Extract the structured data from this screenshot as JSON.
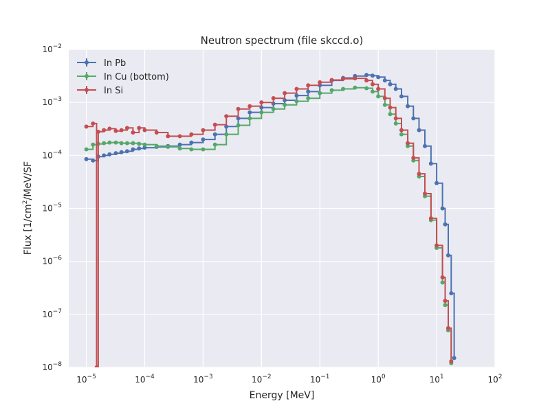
{
  "chart_data": {
    "type": "line",
    "title": "Neutron spectrum (file skccd.o)",
    "xlabel": "Energy [MeV]",
    "ylabel_prefix": "Flux [1/cm",
    "ylabel_sup": "2",
    "ylabel_suffix": "/MeV/SF",
    "x_scale": "log",
    "y_scale": "log",
    "xlim": [
      5e-06,
      100
    ],
    "ylim": [
      1e-08,
      0.01
    ],
    "grid": true,
    "legend_position": "top-left",
    "x_ticks": [
      {
        "base": "10",
        "exp": "−5"
      },
      {
        "base": "10",
        "exp": "−4"
      },
      {
        "base": "10",
        "exp": "−3"
      },
      {
        "base": "10",
        "exp": "−2"
      },
      {
        "base": "10",
        "exp": "−1"
      },
      {
        "base": "10",
        "exp": "0"
      },
      {
        "base": "10",
        "exp": "1"
      },
      {
        "base": "10",
        "exp": "2"
      }
    ],
    "y_ticks": [
      {
        "base": "10",
        "exp": "−8"
      },
      {
        "base": "10",
        "exp": "−7"
      },
      {
        "base": "10",
        "exp": "−6"
      },
      {
        "base": "10",
        "exp": "−5"
      },
      {
        "base": "10",
        "exp": "−4"
      },
      {
        "base": "10",
        "exp": "−3"
      },
      {
        "base": "10",
        "exp": "−2"
      }
    ],
    "series": [
      {
        "name": "In Pb",
        "color": "#4C72B0",
        "points": [
          [
            1e-05,
            8.5e-05
          ],
          [
            1.3e-05,
            8e-05
          ],
          [
            1.6e-05,
            9.5e-05
          ],
          [
            2e-05,
            0.0001
          ],
          [
            2.5e-05,
            0.000105
          ],
          [
            3.2e-05,
            0.00011
          ],
          [
            4e-05,
            0.000115
          ],
          [
            5e-05,
            0.00012
          ],
          [
            6.3e-05,
            0.00013
          ],
          [
            8e-05,
            0.000135
          ],
          [
            0.0001,
            0.00014
          ],
          [
            0.00016,
            0.000145
          ],
          [
            0.00025,
            0.00015
          ],
          [
            0.0004,
            0.00016
          ],
          [
            0.00063,
            0.000175
          ],
          [
            0.001,
            0.0002
          ],
          [
            0.0016,
            0.00025
          ],
          [
            0.0025,
            0.00035
          ],
          [
            0.004,
            0.0005
          ],
          [
            0.0063,
            0.00065
          ],
          [
            0.01,
            0.0008
          ],
          [
            0.016,
            0.00095
          ],
          [
            0.025,
            0.0011
          ],
          [
            0.04,
            0.00135
          ],
          [
            0.063,
            0.0016
          ],
          [
            0.1,
            0.0021
          ],
          [
            0.16,
            0.0026
          ],
          [
            0.25,
            0.0029
          ],
          [
            0.4,
            0.00315
          ],
          [
            0.63,
            0.0033
          ],
          [
            0.8,
            0.0032
          ],
          [
            1.0,
            0.003
          ],
          [
            1.3,
            0.0026
          ],
          [
            1.6,
            0.0022
          ],
          [
            2.0,
            0.0018
          ],
          [
            2.5,
            0.0013
          ],
          [
            3.2,
            0.00085
          ],
          [
            4.0,
            0.0005
          ],
          [
            5.0,
            0.0003
          ],
          [
            6.3,
            0.00015
          ],
          [
            8.0,
            7e-05
          ],
          [
            10,
            3e-05
          ],
          [
            12.6,
            1e-05
          ],
          [
            14,
            5e-06
          ],
          [
            15.8,
            1.3e-06
          ],
          [
            17.8,
            2.5e-07
          ],
          [
            20,
            1.5e-08
          ]
        ]
      },
      {
        "name": "In Cu (bottom)",
        "color": "#55A868",
        "points": [
          [
            1e-05,
            0.00013
          ],
          [
            1.3e-05,
            0.00016
          ],
          [
            1.6e-05,
            0.000165
          ],
          [
            2e-05,
            0.00017
          ],
          [
            2.5e-05,
            0.000175
          ],
          [
            3.2e-05,
            0.000175
          ],
          [
            4e-05,
            0.00017
          ],
          [
            5e-05,
            0.00017
          ],
          [
            6.3e-05,
            0.00017
          ],
          [
            8e-05,
            0.000165
          ],
          [
            0.0001,
            0.00016
          ],
          [
            0.00016,
            0.00015
          ],
          [
            0.00025,
            0.000145
          ],
          [
            0.0004,
            0.000135
          ],
          [
            0.00063,
            0.00013
          ],
          [
            0.001,
            0.00013
          ],
          [
            0.0016,
            0.00016
          ],
          [
            0.0025,
            0.00025
          ],
          [
            0.004,
            0.00037
          ],
          [
            0.0063,
            0.0005
          ],
          [
            0.01,
            0.00065
          ],
          [
            0.016,
            0.00075
          ],
          [
            0.025,
            0.0009
          ],
          [
            0.04,
            0.00105
          ],
          [
            0.063,
            0.0012
          ],
          [
            0.1,
            0.0015
          ],
          [
            0.16,
            0.0017
          ],
          [
            0.25,
            0.0018
          ],
          [
            0.4,
            0.0019
          ],
          [
            0.63,
            0.00185
          ],
          [
            0.8,
            0.0016
          ],
          [
            1.0,
            0.0013
          ],
          [
            1.3,
            0.0009
          ],
          [
            1.6,
            0.0006
          ],
          [
            2.0,
            0.0004
          ],
          [
            2.5,
            0.00025
          ],
          [
            3.2,
            0.00015
          ],
          [
            4.0,
            8e-05
          ],
          [
            5.0,
            4e-05
          ],
          [
            6.3,
            1.7e-05
          ],
          [
            8.0,
            6e-06
          ],
          [
            10,
            1.8e-06
          ],
          [
            12.6,
            4e-07
          ],
          [
            14,
            1.5e-07
          ],
          [
            15.8,
            5e-08
          ],
          [
            17.8,
            1.2e-08
          ]
        ]
      },
      {
        "name": "In Si",
        "color": "#C44E52",
        "points": [
          [
            1e-05,
            0.00035
          ],
          [
            1.3e-05,
            0.0004
          ],
          [
            1.5e-05,
            1e-08
          ],
          [
            1.6e-05,
            0.00028
          ],
          [
            2e-05,
            0.0003
          ],
          [
            2.5e-05,
            0.00032
          ],
          [
            3.2e-05,
            0.00029
          ],
          [
            4e-05,
            0.0003
          ],
          [
            5e-05,
            0.00033
          ],
          [
            6.3e-05,
            0.00027
          ],
          [
            8e-05,
            0.00033
          ],
          [
            0.0001,
            0.0003
          ],
          [
            0.00016,
            0.00027
          ],
          [
            0.00025,
            0.00023
          ],
          [
            0.0004,
            0.00023
          ],
          [
            0.00063,
            0.00025
          ],
          [
            0.001,
            0.0003
          ],
          [
            0.0016,
            0.00038
          ],
          [
            0.0025,
            0.00055
          ],
          [
            0.004,
            0.00075
          ],
          [
            0.0063,
            0.00085
          ],
          [
            0.01,
            0.001
          ],
          [
            0.016,
            0.0012
          ],
          [
            0.025,
            0.0015
          ],
          [
            0.04,
            0.0018
          ],
          [
            0.063,
            0.0021
          ],
          [
            0.1,
            0.0024
          ],
          [
            0.16,
            0.00265
          ],
          [
            0.25,
            0.0028
          ],
          [
            0.4,
            0.00285
          ],
          [
            0.63,
            0.0026
          ],
          [
            0.8,
            0.0022
          ],
          [
            1.0,
            0.0018
          ],
          [
            1.3,
            0.0012
          ],
          [
            1.6,
            0.0008
          ],
          [
            2.0,
            0.0005
          ],
          [
            2.5,
            0.0003
          ],
          [
            3.2,
            0.00017
          ],
          [
            4.0,
            9e-05
          ],
          [
            5.0,
            4.5e-05
          ],
          [
            6.3,
            1.9e-05
          ],
          [
            8.0,
            6.5e-06
          ],
          [
            10,
            2e-06
          ],
          [
            12.6,
            5e-07
          ],
          [
            14,
            1.8e-07
          ],
          [
            15.8,
            5.5e-08
          ],
          [
            17.8,
            1.3e-08
          ]
        ]
      }
    ]
  }
}
